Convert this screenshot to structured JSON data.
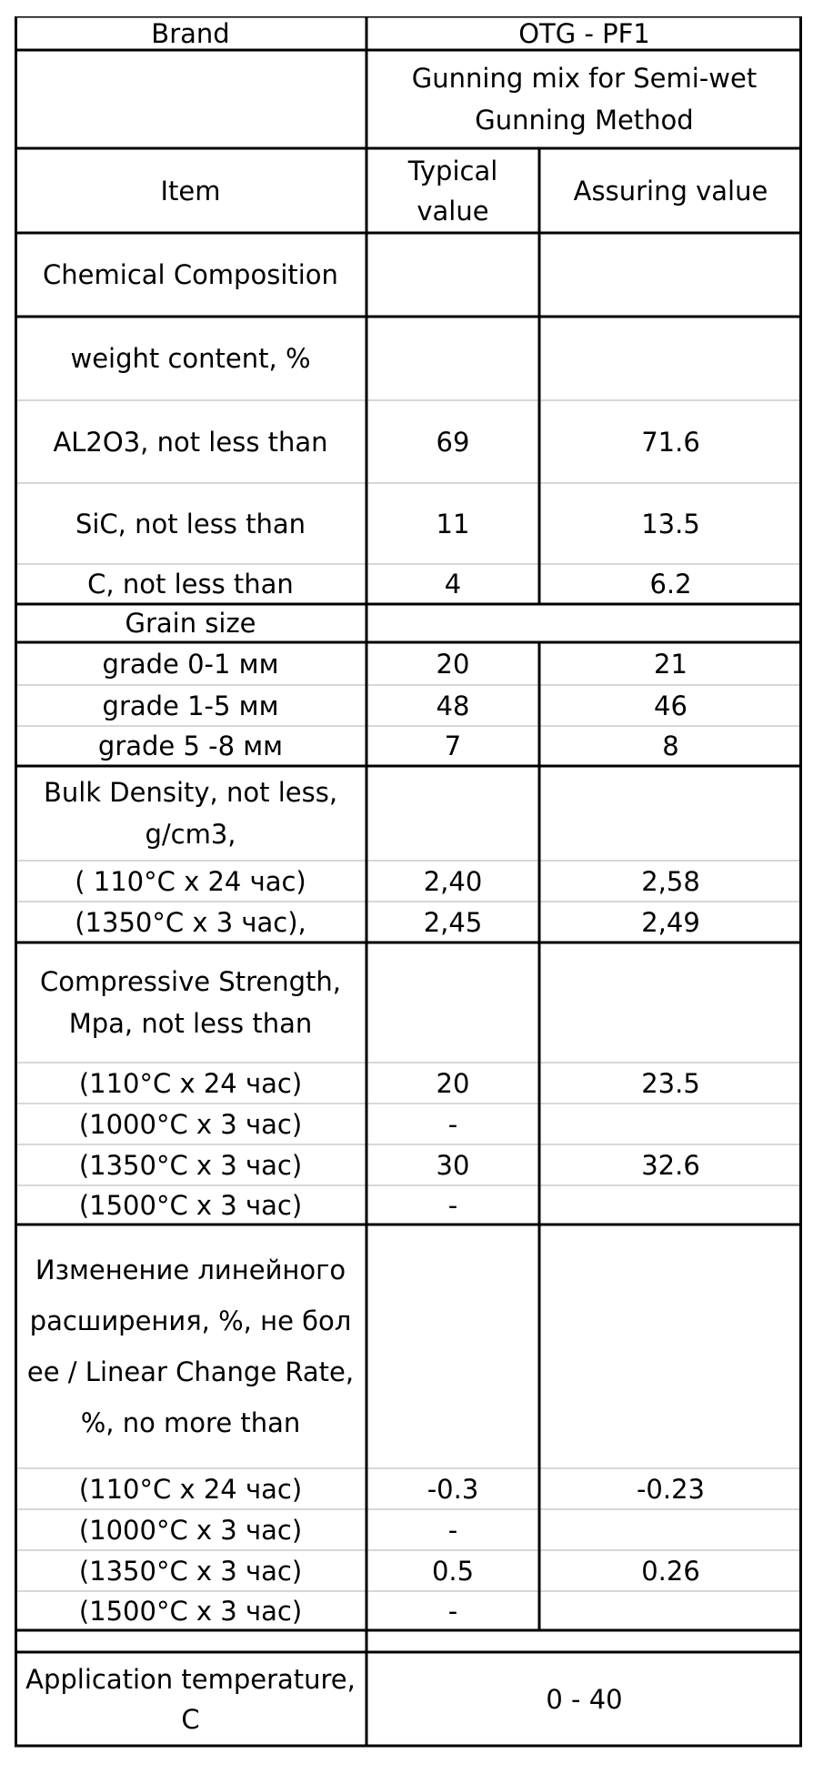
{
  "header": {
    "brand_label": "Brand",
    "brand_value": "OTG - PF1",
    "product_name": "Gunning mix for Semi-wet\nGunning Method",
    "item_label": "Item",
    "typical_label": "Typical\nvalue",
    "assuring_label": "Assuring value"
  },
  "rows": [
    {
      "item": "Chemical Composition",
      "typical": "",
      "assuring": ""
    },
    {
      "item": "weight content, %",
      "typical": "",
      "assuring": ""
    },
    {
      "item": "AL2O3,   not less than",
      "typical": "69",
      "assuring": "71.6"
    },
    {
      "item": "SiC,   not less than",
      "typical": "11",
      "assuring": "13.5"
    },
    {
      "item": "C,  not less than",
      "typical": "4",
      "assuring": "6.2"
    },
    {
      "item": "Grain size",
      "typical": "",
      "assuring": ""
    },
    {
      "item": "grade    0-1 мм",
      "typical": "20",
      "assuring": "21"
    },
    {
      "item": "grade    1-5 мм",
      "typical": "48",
      "assuring": "46"
    },
    {
      "item": "grade  5 -8 мм",
      "typical": "7",
      "assuring": "8"
    },
    {
      "item": "Bulk Density, not less,\ng/cm3,",
      "typical": "",
      "assuring": ""
    },
    {
      "item": "( 110°C x 24 час)",
      "typical": "2,40",
      "assuring": "2,58"
    },
    {
      "item": "(1350°C x 3 час),",
      "typical": "2,45",
      "assuring": "2,49"
    },
    {
      "item": "Compressive Strength,\nMpa, not less than",
      "typical": "",
      "assuring": ""
    },
    {
      "item": "(110°C x 24 час)",
      "typical": "20",
      "assuring": "23.5"
    },
    {
      "item": "(1000°C x 3 час)",
      "typical": "-",
      "assuring": ""
    },
    {
      "item": "(1350°C x 3 час)",
      "typical": "30",
      "assuring": "32.6"
    },
    {
      "item": "(1500°C x 3 час)",
      "typical": "-",
      "assuring": ""
    },
    {
      "item": "Изменение линейного\nрасширения, %, не бол\nее / Linear Change Rate,\n%, no more than",
      "typical": "",
      "assuring": ""
    },
    {
      "item": "(110°C x 24 час)",
      "typical": "-0.3",
      "assuring": "-0.23"
    },
    {
      "item": "(1000°C x 3 час)",
      "typical": "-",
      "assuring": ""
    },
    {
      "item": "(1350°C x 3 час)",
      "typical": "0.5",
      "assuring": "0.26"
    },
    {
      "item": "(1500°C x 3 час)",
      "typical": "-",
      "assuring": ""
    }
  ],
  "footer": {
    "item": "Application temperature,\nC",
    "value": "0 - 40"
  }
}
